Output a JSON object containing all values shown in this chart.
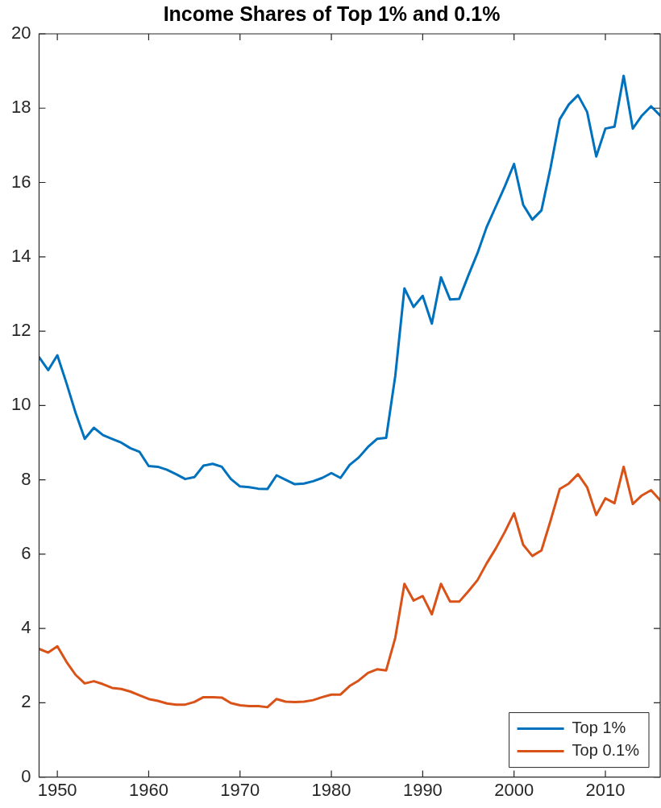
{
  "chart_data": {
    "type": "line",
    "title": "Income Shares of Top 1% and 0.1%",
    "x": [
      1948,
      1949,
      1950,
      1951,
      1952,
      1953,
      1954,
      1955,
      1956,
      1957,
      1958,
      1959,
      1960,
      1961,
      1962,
      1963,
      1964,
      1965,
      1966,
      1967,
      1968,
      1969,
      1970,
      1971,
      1972,
      1973,
      1974,
      1975,
      1976,
      1977,
      1978,
      1979,
      1980,
      1981,
      1982,
      1983,
      1984,
      1985,
      1986,
      1987,
      1988,
      1989,
      1990,
      1991,
      1992,
      1993,
      1994,
      1995,
      1996,
      1997,
      1998,
      1999,
      2000,
      2001,
      2002,
      2003,
      2004,
      2005,
      2006,
      2007,
      2008,
      2009,
      2010,
      2011,
      2012,
      2013,
      2014,
      2015,
      2016
    ],
    "series": [
      {
        "name": "Top 1%",
        "color": "#0072bd",
        "values": [
          11.3,
          10.95,
          11.35,
          10.6,
          9.8,
          9.1,
          9.4,
          9.2,
          9.1,
          9.0,
          8.85,
          8.75,
          8.37,
          8.35,
          8.27,
          8.15,
          8.02,
          8.07,
          8.38,
          8.43,
          8.35,
          8.02,
          7.82,
          7.8,
          7.76,
          7.75,
          8.12,
          8.0,
          7.88,
          7.9,
          7.96,
          8.05,
          8.18,
          8.05,
          8.4,
          8.6,
          8.88,
          9.1,
          9.13,
          10.8,
          13.15,
          12.65,
          12.95,
          12.2,
          13.45,
          12.85,
          12.87,
          13.5,
          14.1,
          14.8,
          15.35,
          15.9,
          16.5,
          15.4,
          15.0,
          15.25,
          16.4,
          17.7,
          18.1,
          18.35,
          17.9,
          16.7,
          17.45,
          17.5,
          18.87,
          17.45,
          17.8,
          18.05,
          17.8
        ]
      },
      {
        "name": "Top 0.1%",
        "color": "#d95319",
        "values": [
          3.45,
          3.35,
          3.52,
          3.1,
          2.75,
          2.52,
          2.58,
          2.5,
          2.4,
          2.37,
          2.3,
          2.2,
          2.1,
          2.05,
          1.98,
          1.95,
          1.95,
          2.02,
          2.15,
          2.15,
          2.14,
          1.99,
          1.93,
          1.91,
          1.91,
          1.88,
          2.1,
          2.03,
          2.02,
          2.03,
          2.07,
          2.15,
          2.22,
          2.22,
          2.45,
          2.6,
          2.8,
          2.9,
          2.87,
          3.75,
          5.2,
          4.75,
          4.87,
          4.38,
          5.2,
          4.72,
          4.72,
          5.0,
          5.3,
          5.75,
          6.15,
          6.6,
          7.1,
          6.25,
          5.95,
          6.1,
          6.9,
          7.75,
          7.9,
          8.15,
          7.8,
          7.05,
          7.5,
          7.37,
          8.35,
          7.35,
          7.58,
          7.72,
          7.45
        ]
      }
    ],
    "xlim": [
      1948,
      2016
    ],
    "xticks": [
      1950,
      1960,
      1970,
      1980,
      1990,
      2000,
      2010
    ],
    "ylim": [
      0,
      20
    ],
    "yticks": [
      0,
      2,
      4,
      6,
      8,
      10,
      12,
      14,
      16,
      18,
      20
    ],
    "grid": false,
    "legend": "bottom right",
    "marker": "none",
    "line_style": "solid"
  }
}
